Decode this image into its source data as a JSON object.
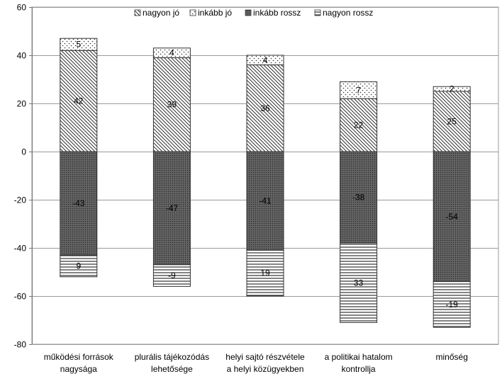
{
  "chart_data": {
    "type": "bar",
    "stacked": true,
    "categories": [
      [
        "működési források",
        "nagysága"
      ],
      [
        "plurális tájékozódás",
        "lehetősége"
      ],
      [
        "helyi sajtó részvétele",
        "a helyi közügyekben"
      ],
      [
        "a politikai hatalom",
        "kontrollja"
      ],
      [
        "minőség"
      ]
    ],
    "series": [
      {
        "name": "nagyon jó",
        "values": [
          42,
          39,
          36,
          22,
          25
        ],
        "labels": [
          "42",
          "39",
          "36",
          "22",
          "25"
        ],
        "pattern": "diag",
        "direction": "positive"
      },
      {
        "name": "inkább jó",
        "values": [
          5,
          4,
          4,
          7,
          2
        ],
        "labels": [
          "5",
          "4",
          "4",
          "7",
          "2"
        ],
        "pattern": "dots",
        "direction": "positive"
      },
      {
        "name": "inkább rossz",
        "values": [
          -43,
          -47,
          -41,
          -38,
          -54
        ],
        "labels": [
          "-43",
          "-47",
          "-41",
          "-38",
          "-54"
        ],
        "pattern": "dense",
        "direction": "negative"
      },
      {
        "name": "nagyon rossz",
        "values": [
          -9,
          -9,
          -19,
          -33,
          -19
        ],
        "labels": [
          "9",
          "-9",
          "19",
          "33",
          "-19"
        ],
        "pattern": "hlines",
        "direction": "negative"
      }
    ],
    "ylim": [
      -80,
      60
    ],
    "yticks": [
      -80,
      -60,
      -40,
      -20,
      0,
      20,
      40,
      60
    ],
    "grid": true,
    "legend": "top",
    "title": "",
    "xlabel": "",
    "ylabel": ""
  }
}
